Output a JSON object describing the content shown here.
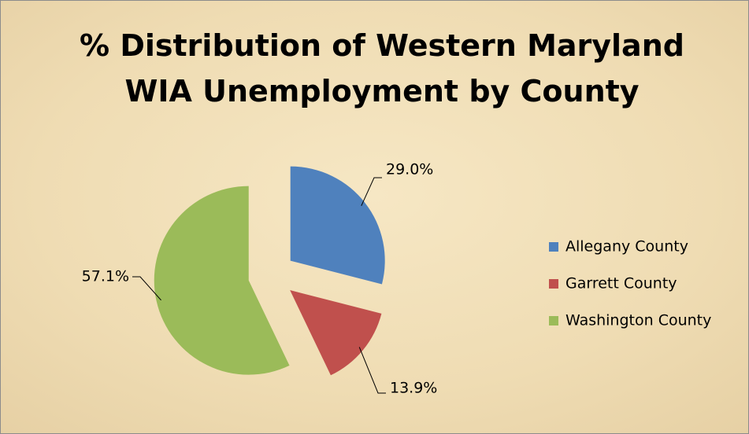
{
  "chart_data": {
    "type": "pie",
    "title": "% Distribution of Western Maryland WIA Unemployment by County",
    "categories": [
      "Allegany County",
      "Garrett County",
      "Washington County"
    ],
    "values": [
      29.0,
      13.9,
      57.1
    ],
    "value_labels": [
      "29.0%",
      "13.9%",
      "57.1%"
    ],
    "colors": [
      "#4f81bd",
      "#c0504d",
      "#9bbb59"
    ],
    "legend": "right"
  }
}
